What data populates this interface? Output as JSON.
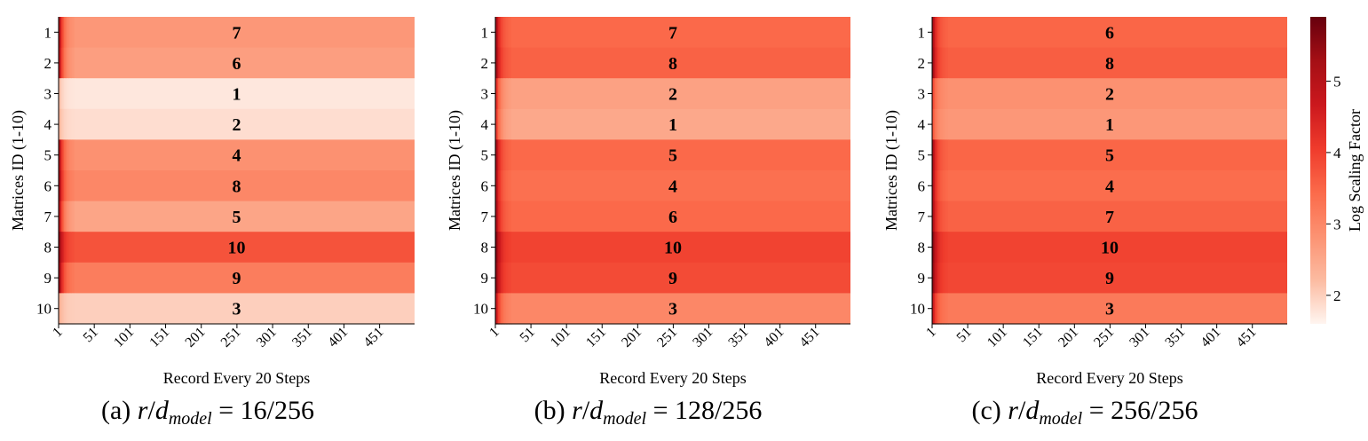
{
  "figure": {
    "captions": [
      {
        "prefix": "(a)",
        "r": "r",
        "d": "d",
        "sub": "model",
        "value": "= 16/256"
      },
      {
        "prefix": "(b)",
        "r": "r",
        "d": "d",
        "sub": "model",
        "value": "= 128/256"
      },
      {
        "prefix": "(c)",
        "r": "r",
        "d": "d",
        "sub": "model",
        "value": "= 256/256"
      }
    ]
  },
  "colorbar": {
    "label": "Log Scaling Factor",
    "range": [
      1.6,
      5.9
    ],
    "ticks": [
      2,
      3,
      4,
      5
    ],
    "colormap": "Reds",
    "colors": [
      "#fff5f0",
      "#fcbba1",
      "#fc9272",
      "#fb6a4a",
      "#ef3b2c",
      "#cb181d",
      "#a50f15",
      "#67000d"
    ]
  },
  "chart_data": [
    {
      "type": "heatmap",
      "xlabel": "Record Every 20 Steps",
      "ylabel": "Matrices ID (1-10)",
      "x_tick_labels": [
        "1",
        "51",
        "101",
        "151",
        "201",
        "251",
        "301",
        "351",
        "401",
        "451"
      ],
      "x_range": [
        1,
        500
      ],
      "y_tick_labels": [
        "1",
        "2",
        "3",
        "4",
        "5",
        "6",
        "7",
        "8",
        "9",
        "10"
      ],
      "rows": [
        {
          "id": 1,
          "rank": "7",
          "value": 2.75,
          "initial": 5.3
        },
        {
          "id": 2,
          "rank": "6",
          "value": 2.65,
          "initial": 5.2
        },
        {
          "id": 3,
          "rank": "1",
          "value": 1.75,
          "initial": 2.2
        },
        {
          "id": 4,
          "rank": "2",
          "value": 1.85,
          "initial": 2.3
        },
        {
          "id": 5,
          "rank": "4",
          "value": 2.85,
          "initial": 5.3
        },
        {
          "id": 6,
          "rank": "8",
          "value": 3.0,
          "initial": 5.4
        },
        {
          "id": 7,
          "rank": "5",
          "value": 2.55,
          "initial": 5.2
        },
        {
          "id": 8,
          "rank": "10",
          "value": 3.75,
          "initial": 5.6
        },
        {
          "id": 9,
          "rank": "9",
          "value": 3.15,
          "initial": 5.5
        },
        {
          "id": 10,
          "rank": "3",
          "value": 2.0,
          "initial": 2.4
        }
      ]
    },
    {
      "type": "heatmap",
      "xlabel": "Record Every 20 Steps",
      "ylabel": "Matrices ID (1-10)",
      "x_tick_labels": [
        "1",
        "51",
        "101",
        "151",
        "201",
        "251",
        "301",
        "351",
        "401",
        "451"
      ],
      "x_range": [
        1,
        500
      ],
      "y_tick_labels": [
        "1",
        "2",
        "3",
        "4",
        "5",
        "6",
        "7",
        "8",
        "9",
        "10"
      ],
      "rows": [
        {
          "id": 1,
          "rank": "7",
          "value": 3.45,
          "initial": 5.4
        },
        {
          "id": 2,
          "rank": "8",
          "value": 3.55,
          "initial": 5.5
        },
        {
          "id": 3,
          "rank": "2",
          "value": 2.6,
          "initial": 4.5
        },
        {
          "id": 4,
          "rank": "1",
          "value": 2.5,
          "initial": 4.3
        },
        {
          "id": 5,
          "rank": "5",
          "value": 3.45,
          "initial": 5.4
        },
        {
          "id": 6,
          "rank": "4",
          "value": 3.35,
          "initial": 5.3
        },
        {
          "id": 7,
          "rank": "6",
          "value": 3.45,
          "initial": 5.4
        },
        {
          "id": 8,
          "rank": "10",
          "value": 3.95,
          "initial": 5.8
        },
        {
          "id": 9,
          "rank": "9",
          "value": 3.85,
          "initial": 5.7
        },
        {
          "id": 10,
          "rank": "3",
          "value": 3.0,
          "initial": 5.0
        }
      ]
    },
    {
      "type": "heatmap",
      "xlabel": "Record Every 20 Steps",
      "ylabel": "Matrices ID (1-10)",
      "x_tick_labels": [
        "1",
        "51",
        "101",
        "151",
        "201",
        "251",
        "301",
        "351",
        "401",
        "451"
      ],
      "x_range": [
        1,
        500
      ],
      "y_tick_labels": [
        "1",
        "2",
        "3",
        "4",
        "5",
        "6",
        "7",
        "8",
        "9",
        "10"
      ],
      "rows": [
        {
          "id": 1,
          "rank": "6",
          "value": 3.5,
          "initial": 5.3
        },
        {
          "id": 2,
          "rank": "8",
          "value": 3.6,
          "initial": 5.4
        },
        {
          "id": 3,
          "rank": "2",
          "value": 2.85,
          "initial": 4.0
        },
        {
          "id": 4,
          "rank": "1",
          "value": 2.75,
          "initial": 3.8
        },
        {
          "id": 5,
          "rank": "5",
          "value": 3.5,
          "initial": 5.3
        },
        {
          "id": 6,
          "rank": "4",
          "value": 3.4,
          "initial": 5.2
        },
        {
          "id": 7,
          "rank": "7",
          "value": 3.55,
          "initial": 5.3
        },
        {
          "id": 8,
          "rank": "10",
          "value": 3.95,
          "initial": 5.7
        },
        {
          "id": 9,
          "rank": "9",
          "value": 3.9,
          "initial": 5.6
        },
        {
          "id": 10,
          "rank": "3",
          "value": 3.2,
          "initial": 4.9
        }
      ]
    }
  ]
}
